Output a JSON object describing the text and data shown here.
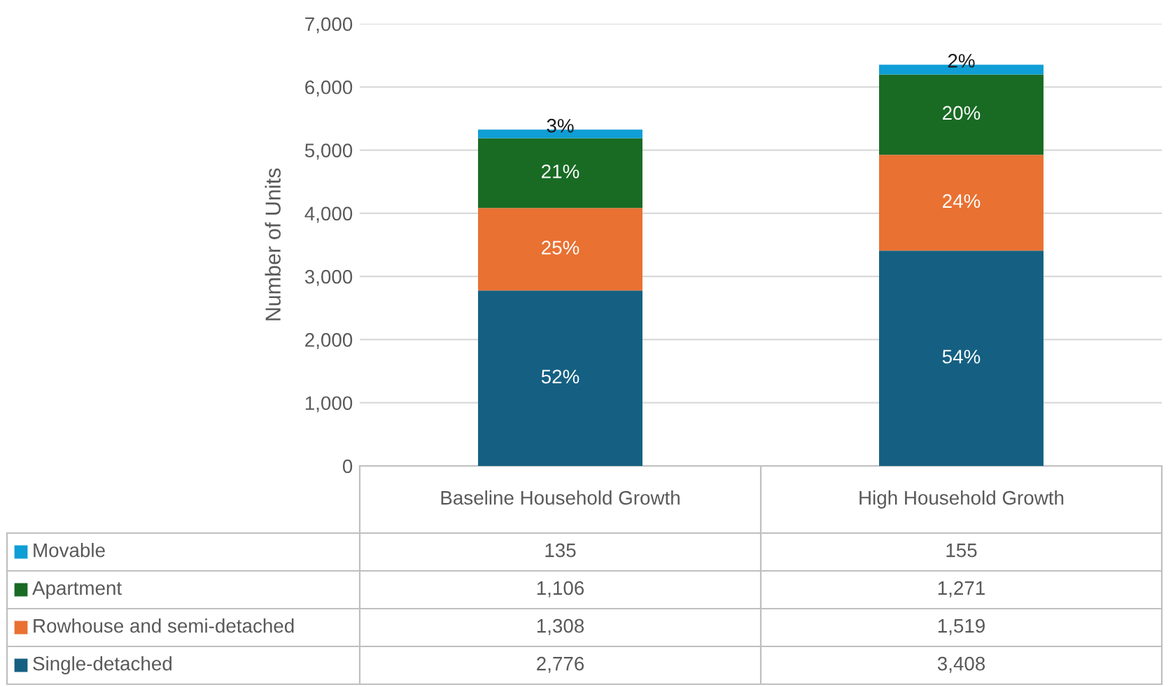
{
  "chart_data": {
    "type": "bar",
    "stacked": true,
    "ylabel": "Number of Units",
    "categories": [
      "Baseline Household Growth",
      "High Household Growth"
    ],
    "series": [
      {
        "name": "Single-detached",
        "color": "#156082",
        "values": [
          2776,
          3408
        ],
        "value_labels": [
          "2,776",
          "3,408"
        ]
      },
      {
        "name": "Rowhouse and semi-detached",
        "color": "#e97132",
        "values": [
          1308,
          1519
        ],
        "value_labels": [
          "1,308",
          "1,519"
        ]
      },
      {
        "name": "Apartment",
        "color": "#196b24",
        "values": [
          1106,
          1271
        ],
        "value_labels": [
          "1,106",
          "1,271"
        ]
      },
      {
        "name": "Movable",
        "color": "#0f9ed5",
        "values": [
          135,
          155
        ],
        "value_labels": [
          "135",
          "155"
        ]
      }
    ],
    "annotations": [
      "52%",
      "25%",
      "21%",
      "3%",
      "54%",
      "24%",
      "20%",
      "2%"
    ],
    "ylim": [
      0,
      7000
    ],
    "yticks": [
      0,
      {
        "value": 1000,
        "label": "1,000"
      },
      {
        "value": 2000,
        "label": "2,000"
      },
      {
        "value": 3000,
        "label": "3,000"
      },
      {
        "value": 4000,
        "label": "4,000"
      },
      {
        "value": 5000,
        "label": "5,000"
      },
      {
        "value": 6000,
        "label": "6,000"
      },
      {
        "value": 7000,
        "label": "7,000"
      }
    ],
    "grid": "y",
    "legend": "bottom left"
  }
}
